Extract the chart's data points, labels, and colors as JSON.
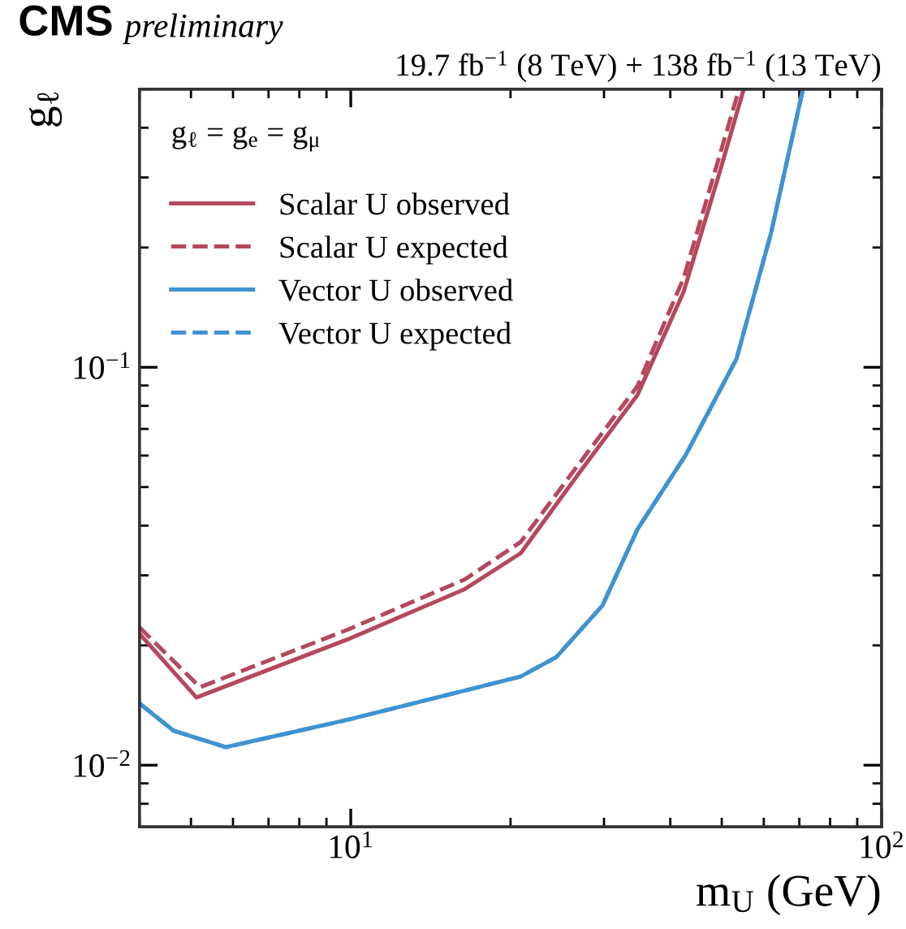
{
  "chart_data": {
    "type": "line",
    "title": "19.7 fb$^{−1}$ (8 TeV) + 138 fb$^{−1}$ (13 TeV)",
    "annotations": [
      "CMS",
      "preliminary"
    ],
    "xlabel": "m$_{U}$ (GeV)",
    "ylabel": "g$_{ℓ}$",
    "legend_title": "g$_{ℓ}$ = g$_{e}$ = g$_{μ}$",
    "log": "xy",
    "xlim": [
      4,
      100
    ],
    "ylim": [
      0.007,
      0.5
    ],
    "xticks": [
      {
        "value": 10,
        "label": "10$^{1}$"
      },
      {
        "value": 100,
        "label": "10$^{2}$"
      }
    ],
    "yticks": [
      {
        "value": 0.01,
        "label": "10$^{−2}$"
      },
      {
        "value": 0.1,
        "label": "10$^{−1}$"
      }
    ],
    "grid": false,
    "legend": "top left",
    "series": [
      {
        "name": "Scalar U observed",
        "color": "#b5485d",
        "line_style": "solid",
        "x": [
          4.0,
          5.12,
          9.86,
          16.4,
          20.9,
          27.0,
          34.7,
          42.4,
          49.4,
          55.0
        ],
        "values": [
          0.0214,
          0.0148,
          0.0207,
          0.0277,
          0.0341,
          0.0545,
          0.0853,
          0.155,
          0.305,
          0.5
        ]
      },
      {
        "name": "Scalar U expected",
        "color": "#b5485d",
        "line_style": "dashed",
        "x": [
          4.0,
          5.2,
          9.86,
          16.4,
          20.9,
          27.0,
          34.7,
          42.4,
          53.9
        ],
        "values": [
          0.0222,
          0.0157,
          0.0219,
          0.0293,
          0.0364,
          0.0575,
          0.0898,
          0.168,
          0.5
        ]
      },
      {
        "name": "Vector U observed",
        "color": "#3f93d0",
        "line_style": "solid",
        "x": [
          4.0,
          4.64,
          5.82,
          9.86,
          16.4,
          20.9,
          24.4,
          29.8,
          34.7,
          42.8,
          53.3,
          61.9,
          71.1
        ],
        "values": [
          0.0143,
          0.0122,
          0.0111,
          0.013,
          0.0154,
          0.0167,
          0.0187,
          0.0252,
          0.0392,
          0.0603,
          0.105,
          0.217,
          0.5
        ]
      },
      {
        "name": "Vector U expected",
        "color": "#3f93d0",
        "line_style": "dashed",
        "x": [
          4.0,
          4.64,
          5.82,
          9.86,
          16.4,
          20.9,
          24.4,
          29.8,
          34.7,
          42.8,
          53.3,
          61.9,
          71.1
        ],
        "values": [
          0.0143,
          0.0122,
          0.0111,
          0.013,
          0.0154,
          0.0167,
          0.0187,
          0.0252,
          0.0392,
          0.0603,
          0.105,
          0.217,
          0.5
        ]
      }
    ]
  }
}
